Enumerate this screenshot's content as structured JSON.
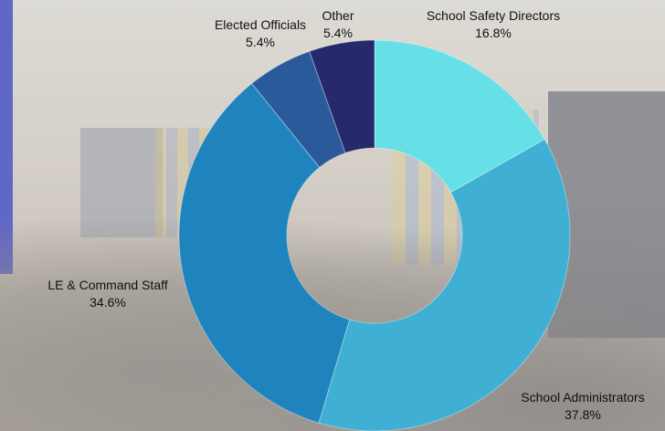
{
  "colors": {
    "school_safety": "#66e0e6",
    "school_admin": "#3fb0d4",
    "le_command": "#1f84bd",
    "elected": "#2a5a99",
    "other": "#26296a"
  },
  "chart_data": {
    "type": "donut",
    "title": "",
    "legend": "none",
    "slices": [
      {
        "name": "School Safety Directors",
        "value": 16.8,
        "label": "16.8%",
        "color": "#66e0e6"
      },
      {
        "name": "School Administrators",
        "value": 37.8,
        "label": "37.8%",
        "color": "#3fb0d4"
      },
      {
        "name": "LE & Command Staff",
        "value": 34.6,
        "label": "34.6%",
        "color": "#1f84bd"
      },
      {
        "name": "Elected Officials",
        "value": 5.4,
        "label": "5.4%",
        "color": "#2a5a99"
      },
      {
        "name": "Other",
        "value": 5.4,
        "label": "5.4%",
        "color": "#26296a"
      }
    ]
  }
}
